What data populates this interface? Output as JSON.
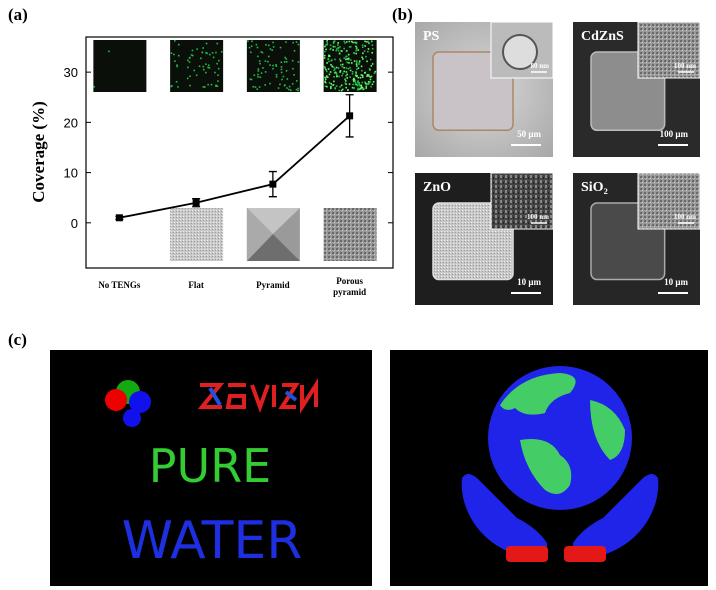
{
  "panel_labels": [
    "(a)",
    "(b)",
    "(c)"
  ],
  "chart_data": {
    "type": "line",
    "y_label": "Coverage (%)",
    "categories": [
      "No TENGs",
      "Flat",
      "Pyramid",
      "Porous pyramid"
    ],
    "series": [
      {
        "values": [
          1,
          4,
          7.7,
          21.3
        ],
        "errors": [
          0.3,
          0.8,
          2.5,
          4.2
        ],
        "color": "#000000"
      }
    ],
    "ylim": [
      -9,
      37
    ],
    "yticks": [
      0,
      10,
      20,
      30
    ]
  },
  "micrographs": [
    {
      "label": "PS",
      "scale_bar": "50 μm",
      "inset_scale_bar": "80 nm"
    },
    {
      "label": "CdZnS",
      "scale_bar": "100 μm",
      "inset_scale_bar": "100 nm"
    },
    {
      "label": "ZnO",
      "scale_bar": "10 μm",
      "inset_scale_bar": "100 nm"
    },
    {
      "label": "SiO₂",
      "scale_bar": "10 μm",
      "inset_scale_bar": "100 nm"
    }
  ],
  "images": {
    "text_lines": [
      "PURE",
      "WATER"
    ]
  }
}
